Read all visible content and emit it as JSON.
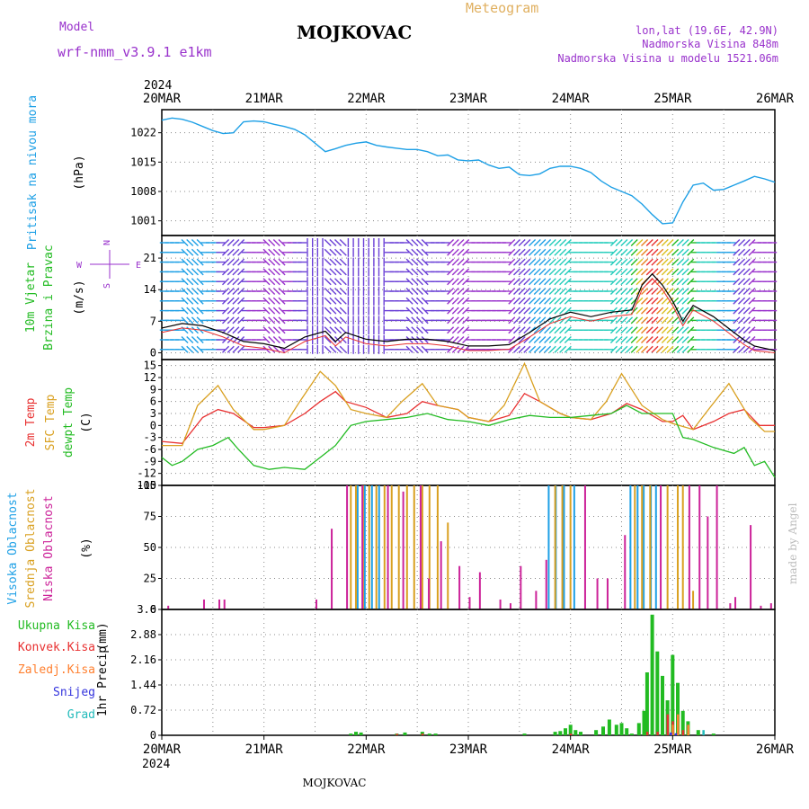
{
  "header": {
    "model_label": "Model",
    "model_name": "wrf-nmm_v3.9.1 e1km",
    "station": "MOJKOVAC",
    "meteogram_label": "Meteogram",
    "coords": "lon,lat (19.6E, 42.9N)",
    "elevation": "Nadmorska Visina 848m",
    "model_elevation": "Nadmorska Visina u modelu 1521.06m",
    "year": "2024",
    "footer_station": "MOJKOVAC",
    "credit": "made by Angel"
  },
  "colors": {
    "pressure": "#1ea0e6",
    "wind_label": "#22bb22",
    "wind_unit_label": "#9932cc",
    "temp2m": "#e83030",
    "sfc_temp": "#d9a020",
    "dewpoint": "#22bb22",
    "cloud_high": "#1ea0e6",
    "cloud_mid": "#d9a020",
    "cloud_low": "#cc2299",
    "precip_total": "#22bb22",
    "precip_conv": "#e83030",
    "precip_frz": "#ff8030",
    "precip_snow": "#3333dd",
    "precip_hail": "#22bbbb",
    "header_purple": "#9932cc",
    "header_orange": "#e0b060"
  },
  "chart_data": [
    {
      "id": "pressure",
      "type": "line",
      "ylabel": "Pritisak na nivou mora",
      "unit": "(hPa)",
      "x_ticks": [
        "20MAR",
        "21MAR",
        "22MAR",
        "23MAR",
        "24MAR",
        "25MAR",
        "26MAR"
      ],
      "y_ticks": [
        1001,
        1008,
        1015,
        1022
      ],
      "ylim": [
        997.5,
        1027.5
      ],
      "series": [
        {
          "x": [
            0,
            0.1,
            0.2,
            0.3,
            0.4,
            0.5,
            0.6,
            0.7,
            0.8,
            0.9,
            1.0,
            1.1,
            1.2,
            1.3,
            1.4,
            1.5,
            1.6,
            1.7,
            1.8,
            1.9,
            2.0,
            2.1,
            2.2,
            2.3,
            2.4,
            2.5,
            2.6,
            2.7,
            2.8,
            2.9,
            3.0,
            3.1,
            3.2,
            3.3,
            3.4,
            3.5,
            3.6,
            3.7,
            3.8,
            3.9,
            4.0,
            4.1,
            4.2,
            4.3,
            4.4,
            4.5,
            4.6,
            4.7,
            4.8,
            4.9,
            5.0,
            5.1,
            5.2,
            5.3,
            5.4,
            5.5,
            5.6,
            5.7,
            5.8,
            5.9,
            6.0
          ],
          "values": [
            1025,
            1025.5,
            1025.2,
            1024.5,
            1023.5,
            1022.5,
            1021.8,
            1022,
            1024.6,
            1024.8,
            1024.6,
            1024,
            1023.5,
            1022.8,
            1021.5,
            1019.5,
            1017.5,
            1018.2,
            1019,
            1019.5,
            1019.8,
            1019,
            1018.6,
            1018.3,
            1018,
            1018,
            1017.5,
            1016.5,
            1016.7,
            1015.5,
            1015.3,
            1015.5,
            1014.3,
            1013.5,
            1013.8,
            1012,
            1011.8,
            1012.2,
            1013.5,
            1014,
            1014,
            1013.5,
            1012.5,
            1010.5,
            1009,
            1008,
            1007,
            1005,
            1002.5,
            1000.3,
            1000.5,
            1005.5,
            1009.5,
            1010,
            1008.3,
            1008.5,
            1009.5,
            1010.5,
            1011.6,
            1011,
            1010.2
          ]
        }
      ]
    },
    {
      "id": "wind",
      "type": "line",
      "ylabel": "10m Vjetar",
      "ylabel2": "Brzina i Pravac",
      "unit": "(m/s)",
      "compass": {
        "n": "N",
        "s": "S",
        "e": "E",
        "w": "W"
      },
      "x_ticks": [
        "20MAR",
        "21MAR",
        "22MAR",
        "23MAR",
        "24MAR",
        "25MAR",
        "26MAR"
      ],
      "y_ticks": [
        0,
        7,
        14,
        21
      ],
      "ylim": [
        -1.5,
        26
      ],
      "series": [
        {
          "name": "wind_speed",
          "x": [
            0,
            0.2,
            0.4,
            0.6,
            0.8,
            1.0,
            1.2,
            1.4,
            1.6,
            1.7,
            1.8,
            2.0,
            2.2,
            2.4,
            2.6,
            2.8,
            3.0,
            3.2,
            3.4,
            3.6,
            3.8,
            4.0,
            4.2,
            4.4,
            4.6,
            4.7,
            4.8,
            4.9,
            5.0,
            5.1,
            5.2,
            5.4,
            5.6,
            5.7,
            5.8,
            6.0
          ],
          "values": [
            5.5,
            6.5,
            6,
            4.5,
            2.5,
            2,
            1,
            3.5,
            4.8,
            2.5,
            4.5,
            3,
            2.5,
            3,
            3,
            2.5,
            1.5,
            1.5,
            1.8,
            4.5,
            7.5,
            9,
            8,
            9,
            9.5,
            15,
            17.5,
            15,
            11.5,
            7,
            10.5,
            8,
            4.5,
            2.8,
            1.5,
            0.5
          ]
        }
      ],
      "barb_directions": [
        "W",
        "NW",
        "E",
        "SW",
        "E",
        "SE",
        "E",
        "S",
        "SE",
        "N",
        "S",
        "E",
        "SE",
        "E",
        "SW",
        "E",
        "E",
        "NE",
        "NE",
        "NE",
        "E",
        "E",
        "SW",
        "SW",
        "SW",
        "NE",
        "E",
        "E",
        "NE",
        "E"
      ]
    },
    {
      "id": "temperature",
      "type": "line",
      "labels": [
        "2m Temp",
        "SFC Temp",
        "dewpt Temp"
      ],
      "unit": "(C)",
      "x_ticks": [
        "20MAR",
        "21MAR",
        "22MAR",
        "23MAR",
        "24MAR",
        "25MAR",
        "26MAR"
      ],
      "y_ticks": [
        -15,
        -12,
        -9,
        -6,
        -3,
        0,
        3,
        6,
        9,
        12,
        15
      ],
      "ylim": [
        -15,
        16.5
      ],
      "series": [
        {
          "name": "2m Temp",
          "x": [
            0,
            0.2,
            0.4,
            0.55,
            0.7,
            0.9,
            1.0,
            1.2,
            1.4,
            1.55,
            1.7,
            1.8,
            2.0,
            2.2,
            2.4,
            2.55,
            2.7,
            2.9,
            3.0,
            3.2,
            3.4,
            3.55,
            3.7,
            3.9,
            4.0,
            4.2,
            4.4,
            4.55,
            4.7,
            4.9,
            5.0,
            5.1,
            5.2,
            5.4,
            5.55,
            5.7,
            5.85,
            6.0
          ],
          "values": [
            -4,
            -4.5,
            2,
            4,
            3,
            -0.5,
            -0.5,
            0,
            3,
            6,
            8.5,
            6,
            4.5,
            2,
            3,
            6,
            5,
            4,
            2,
            1,
            2.5,
            8,
            6,
            3,
            2,
            1.5,
            3,
            5.5,
            4,
            1,
            1,
            2.5,
            -1,
            1,
            3,
            4,
            0,
            0
          ]
        },
        {
          "name": "SFC Temp",
          "x": [
            0,
            0.2,
            0.35,
            0.55,
            0.7,
            0.9,
            1.0,
            1.2,
            1.35,
            1.55,
            1.7,
            1.85,
            2.0,
            2.2,
            2.35,
            2.55,
            2.7,
            2.9,
            3.0,
            3.2,
            3.35,
            3.55,
            3.7,
            3.9,
            4.0,
            4.2,
            4.35,
            4.5,
            4.7,
            4.9,
            5.0,
            5.2,
            5.35,
            5.55,
            5.75,
            5.9,
            6.0
          ],
          "values": [
            -5,
            -5,
            5,
            10,
            4,
            -1,
            -1,
            0,
            6,
            13.5,
            10,
            4,
            3,
            2,
            6,
            10.5,
            5,
            4,
            2,
            1,
            5,
            15.5,
            6,
            3,
            2,
            1.5,
            6,
            13,
            5,
            1.5,
            0.5,
            -1,
            4,
            10.5,
            2,
            -1.5,
            -1.5
          ]
        },
        {
          "name": "dewpt Temp",
          "x": [
            0,
            0.1,
            0.2,
            0.35,
            0.5,
            0.65,
            0.75,
            0.9,
            1.05,
            1.2,
            1.4,
            1.55,
            1.7,
            1.85,
            2.0,
            2.2,
            2.4,
            2.6,
            2.8,
            3.0,
            3.2,
            3.4,
            3.6,
            3.8,
            4.0,
            4.2,
            4.4,
            4.55,
            4.7,
            4.85,
            5.0,
            5.1,
            5.2,
            5.4,
            5.6,
            5.7,
            5.8,
            5.9,
            6.0
          ],
          "values": [
            -8,
            -10,
            -9,
            -6,
            -5,
            -3,
            -6,
            -10,
            -11,
            -10.5,
            -11,
            -8,
            -5,
            0,
            1,
            1.5,
            2,
            3,
            1.5,
            1,
            0,
            1.5,
            2.5,
            2,
            2,
            2.5,
            3,
            5,
            3,
            3,
            3,
            -3,
            -3.5,
            -5.5,
            -7,
            -5.5,
            -10,
            -9,
            -13
          ]
        }
      ]
    },
    {
      "id": "clouds",
      "type": "bar",
      "labels": [
        "Visoka Oblacnost",
        "Srednja Oblacnost",
        "Niska Oblacnost"
      ],
      "unit": "(%)",
      "x_ticks": [
        "20MAR",
        "21MAR",
        "22MAR",
        "23MAR",
        "24MAR",
        "25MAR",
        "26MAR"
      ],
      "y_ticks": [
        0,
        25,
        50,
        75,
        100
      ],
      "ylim": [
        0,
        100
      ],
      "series": [
        {
          "name": "Visoka Oblacnost",
          "x": [
            1.93,
            2.0,
            2.07,
            2.14,
            3.8,
            3.87,
            3.95,
            4.05,
            4.6,
            4.67,
            4.73,
            4.8,
            4.85
          ],
          "values": [
            100,
            100,
            100,
            100,
            100,
            100,
            100,
            100,
            100,
            100,
            100,
            100,
            100
          ]
        },
        {
          "name": "Srednja Oblacnost",
          "x": [
            1.85,
            1.9,
            1.97,
            2.03,
            2.1,
            2.18,
            2.25,
            2.32,
            2.4,
            2.47,
            2.55,
            2.62,
            2.7,
            2.8,
            3.85,
            3.92,
            4.0,
            4.63,
            4.7,
            4.78,
            4.95,
            5.05,
            5.1,
            5.2
          ],
          "values": [
            100,
            100,
            100,
            100,
            100,
            100,
            100,
            100,
            100,
            100,
            100,
            100,
            100,
            70,
            100,
            100,
            100,
            100,
            100,
            100,
            100,
            100,
            100,
            15
          ]
        },
        {
          "name": "Niska Oblacnost",
          "x": [
            0.05,
            0.4,
            0.55,
            0.6,
            1.5,
            1.65,
            1.8,
            1.95,
            2.2,
            2.35,
            2.52,
            2.6,
            2.72,
            2.9,
            3.0,
            3.1,
            3.3,
            3.4,
            3.5,
            3.65,
            3.75,
            4.13,
            4.25,
            4.35,
            4.52,
            4.87,
            5.15,
            5.25,
            5.33,
            5.42,
            5.55,
            5.6,
            5.75,
            5.85,
            5.95
          ],
          "values": [
            3,
            8,
            8,
            8,
            8,
            65,
            100,
            100,
            100,
            95,
            100,
            25,
            55,
            35,
            10,
            30,
            8,
            5,
            35,
            15,
            40,
            100,
            25,
            25,
            60,
            100,
            100,
            100,
            75,
            100,
            5,
            10,
            68,
            3,
            5
          ]
        }
      ]
    },
    {
      "id": "precip",
      "type": "bar",
      "labels": [
        "Ukupna Kisa",
        "Konvek.Kisa",
        "Zaledj.Kisa",
        "Snijeg",
        "Grad"
      ],
      "ylabel": "1hr Precip",
      "unit": "(mm)",
      "x_ticks": [
        "20MAR",
        "21MAR",
        "22MAR",
        "23MAR",
        "24MAR",
        "25MAR",
        "26MAR"
      ],
      "y_ticks": [
        "0",
        "0.72",
        "1.44",
        "2.16",
        "2.88",
        "3.6"
      ],
      "ylim": [
        0,
        3.6
      ],
      "series": [
        {
          "name": "Ukupna Kisa",
          "x": [
            1.85,
            1.9,
            1.95,
            2.3,
            2.38,
            2.55,
            2.62,
            2.68,
            3.55,
            3.85,
            3.9,
            3.95,
            4.0,
            4.05,
            4.1,
            4.25,
            4.32,
            4.38,
            4.45,
            4.5,
            4.55,
            4.6,
            4.67,
            4.72,
            4.75,
            4.8,
            4.85,
            4.9,
            4.95,
            5.0,
            5.05,
            5.1,
            5.15,
            5.25,
            5.4
          ],
          "values": [
            0.05,
            0.1,
            0.08,
            0.05,
            0.08,
            0.1,
            0.05,
            0.05,
            0.05,
            0.1,
            0.12,
            0.2,
            0.3,
            0.15,
            0.1,
            0.15,
            0.25,
            0.45,
            0.3,
            0.35,
            0.2,
            0.05,
            0.35,
            0.7,
            1.8,
            3.45,
            2.4,
            1.7,
            1.0,
            2.3,
            1.5,
            0.7,
            0.4,
            0.15,
            0.05
          ]
        },
        {
          "name": "Konvek.Kisa",
          "x": [
            2.3,
            2.55,
            4.0,
            4.75,
            4.85,
            4.95,
            5.0,
            5.05,
            5.1
          ],
          "values": [
            0.04,
            0.05,
            0.05,
            0.1,
            0.1,
            0.6,
            0.4,
            0.5,
            0.15
          ]
        },
        {
          "name": "Zaledj.Kisa",
          "x": [
            5.0,
            5.05,
            5.15
          ],
          "values": [
            0.3,
            0.6,
            0.3
          ]
        },
        {
          "name": "Snijeg",
          "x": [
            4.98,
            5.03
          ],
          "values": [
            0.08,
            0.06
          ]
        },
        {
          "name": "Grad",
          "x": [
            5.3
          ],
          "values": [
            0.15
          ]
        }
      ]
    }
  ]
}
